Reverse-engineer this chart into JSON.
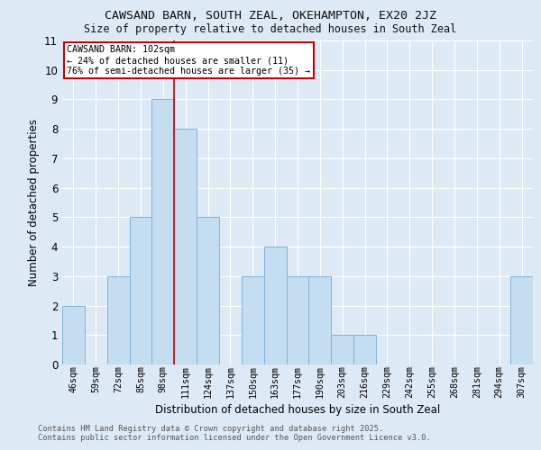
{
  "title": "CAWSAND BARN, SOUTH ZEAL, OKEHAMPTON, EX20 2JZ",
  "subtitle": "Size of property relative to detached houses in South Zeal",
  "xlabel": "Distribution of detached houses by size in South Zeal",
  "ylabel": "Number of detached properties",
  "categories": [
    "46sqm",
    "59sqm",
    "72sqm",
    "85sqm",
    "98sqm",
    "111sqm",
    "124sqm",
    "137sqm",
    "150sqm",
    "163sqm",
    "177sqm",
    "190sqm",
    "203sqm",
    "216sqm",
    "229sqm",
    "242sqm",
    "255sqm",
    "268sqm",
    "281sqm",
    "294sqm",
    "307sqm"
  ],
  "values": [
    2,
    0,
    3,
    5,
    9,
    8,
    5,
    0,
    3,
    4,
    3,
    3,
    1,
    1,
    0,
    0,
    0,
    0,
    0,
    0,
    3
  ],
  "bar_color": "#c5ddf0",
  "bar_edge_color": "#7fb3d9",
  "background_color": "#dde9f5",
  "grid_color": "#ffffff",
  "red_line_x": 4.5,
  "annotation_line1": "CAWSAND BARN: 102sqm",
  "annotation_line2": "← 24% of detached houses are smaller (11)",
  "annotation_line3": "76% of semi-detached houses are larger (35) →",
  "annotation_box_facecolor": "#ffffff",
  "annotation_box_edgecolor": "#cc0000",
  "footer_line1": "Contains HM Land Registry data © Crown copyright and database right 2025.",
  "footer_line2": "Contains public sector information licensed under the Open Government Licence v3.0.",
  "ylim": [
    0,
    11
  ],
  "yticks": [
    0,
    1,
    2,
    3,
    4,
    5,
    6,
    7,
    8,
    9,
    10,
    11
  ]
}
